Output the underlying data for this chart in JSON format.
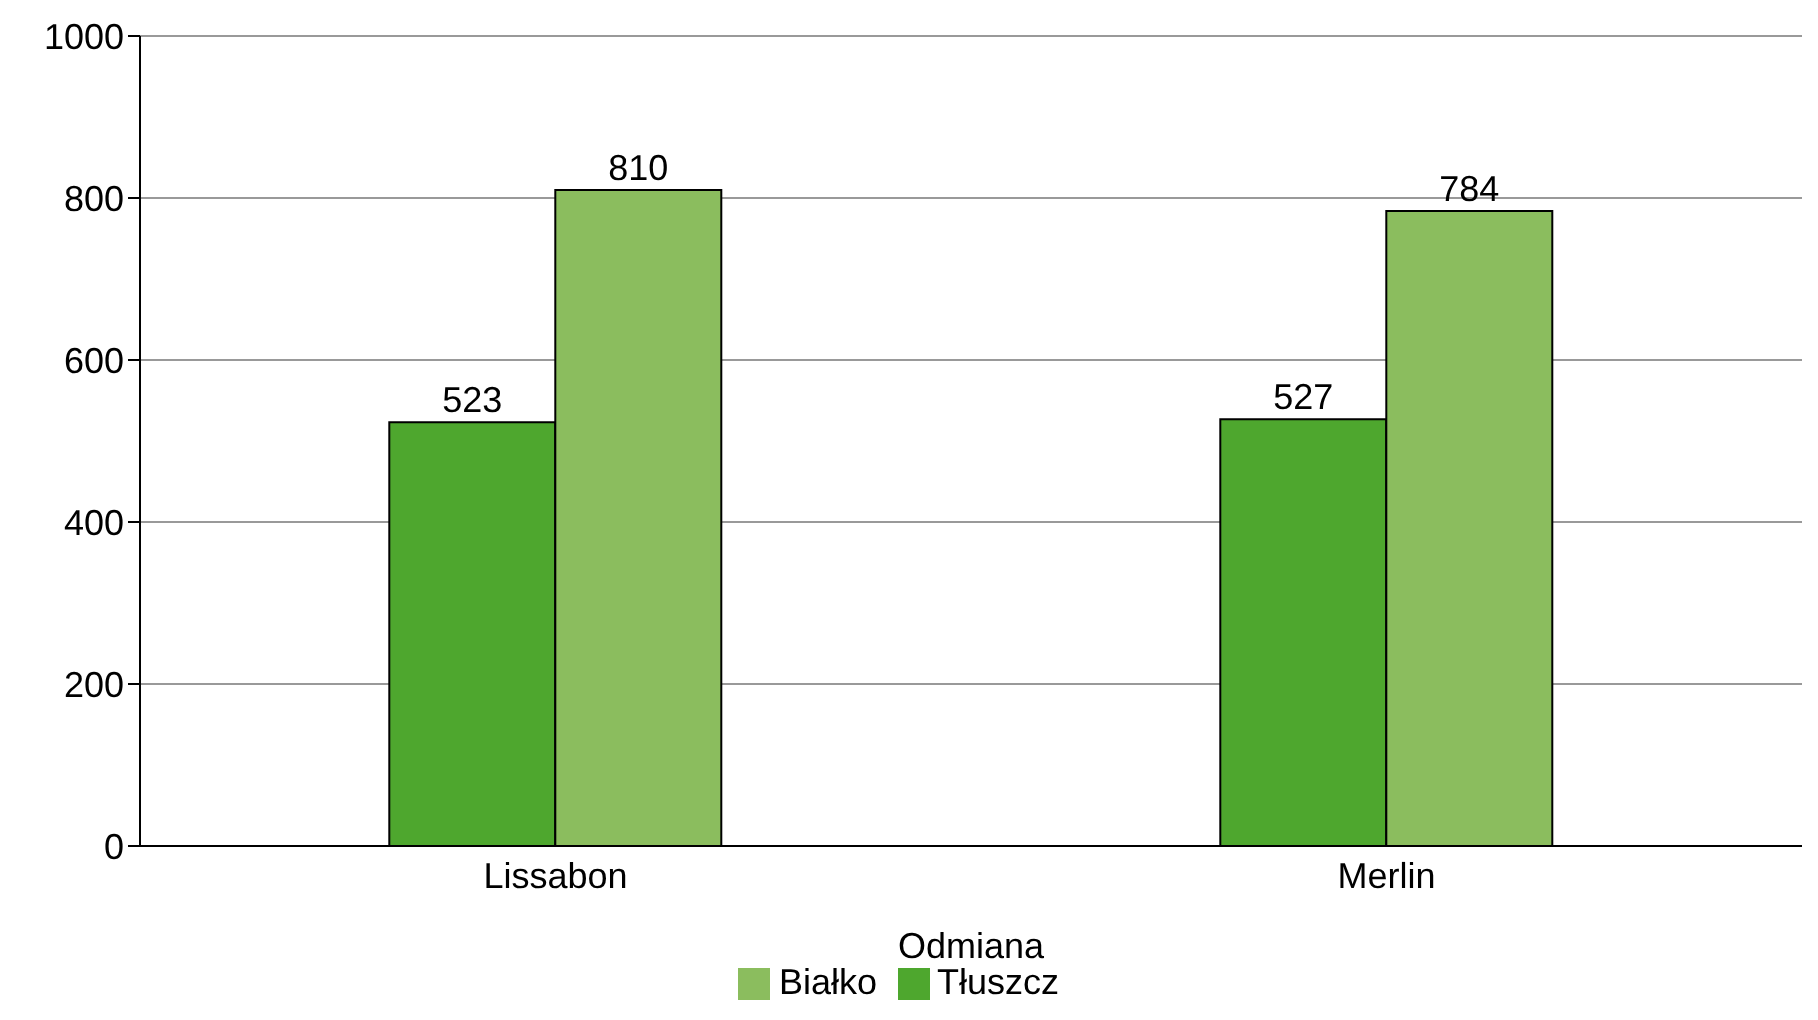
{
  "chart_data": {
    "type": "bar",
    "categories": [
      "Lissabon",
      "Merlin"
    ],
    "xlabel": "Odmiana",
    "series": [
      {
        "name": "Tłuszcz",
        "color": "#4ea72e",
        "values": [
          523,
          527
        ]
      },
      {
        "name": "Białko",
        "color": "#8bbd5e",
        "values": [
          810,
          784
        ]
      }
    ],
    "ylim": [
      0,
      1000
    ],
    "yticks": [
      0,
      200,
      400,
      600,
      800,
      1000
    ],
    "grid": "y",
    "legend": "bottom",
    "data_labels": true
  }
}
